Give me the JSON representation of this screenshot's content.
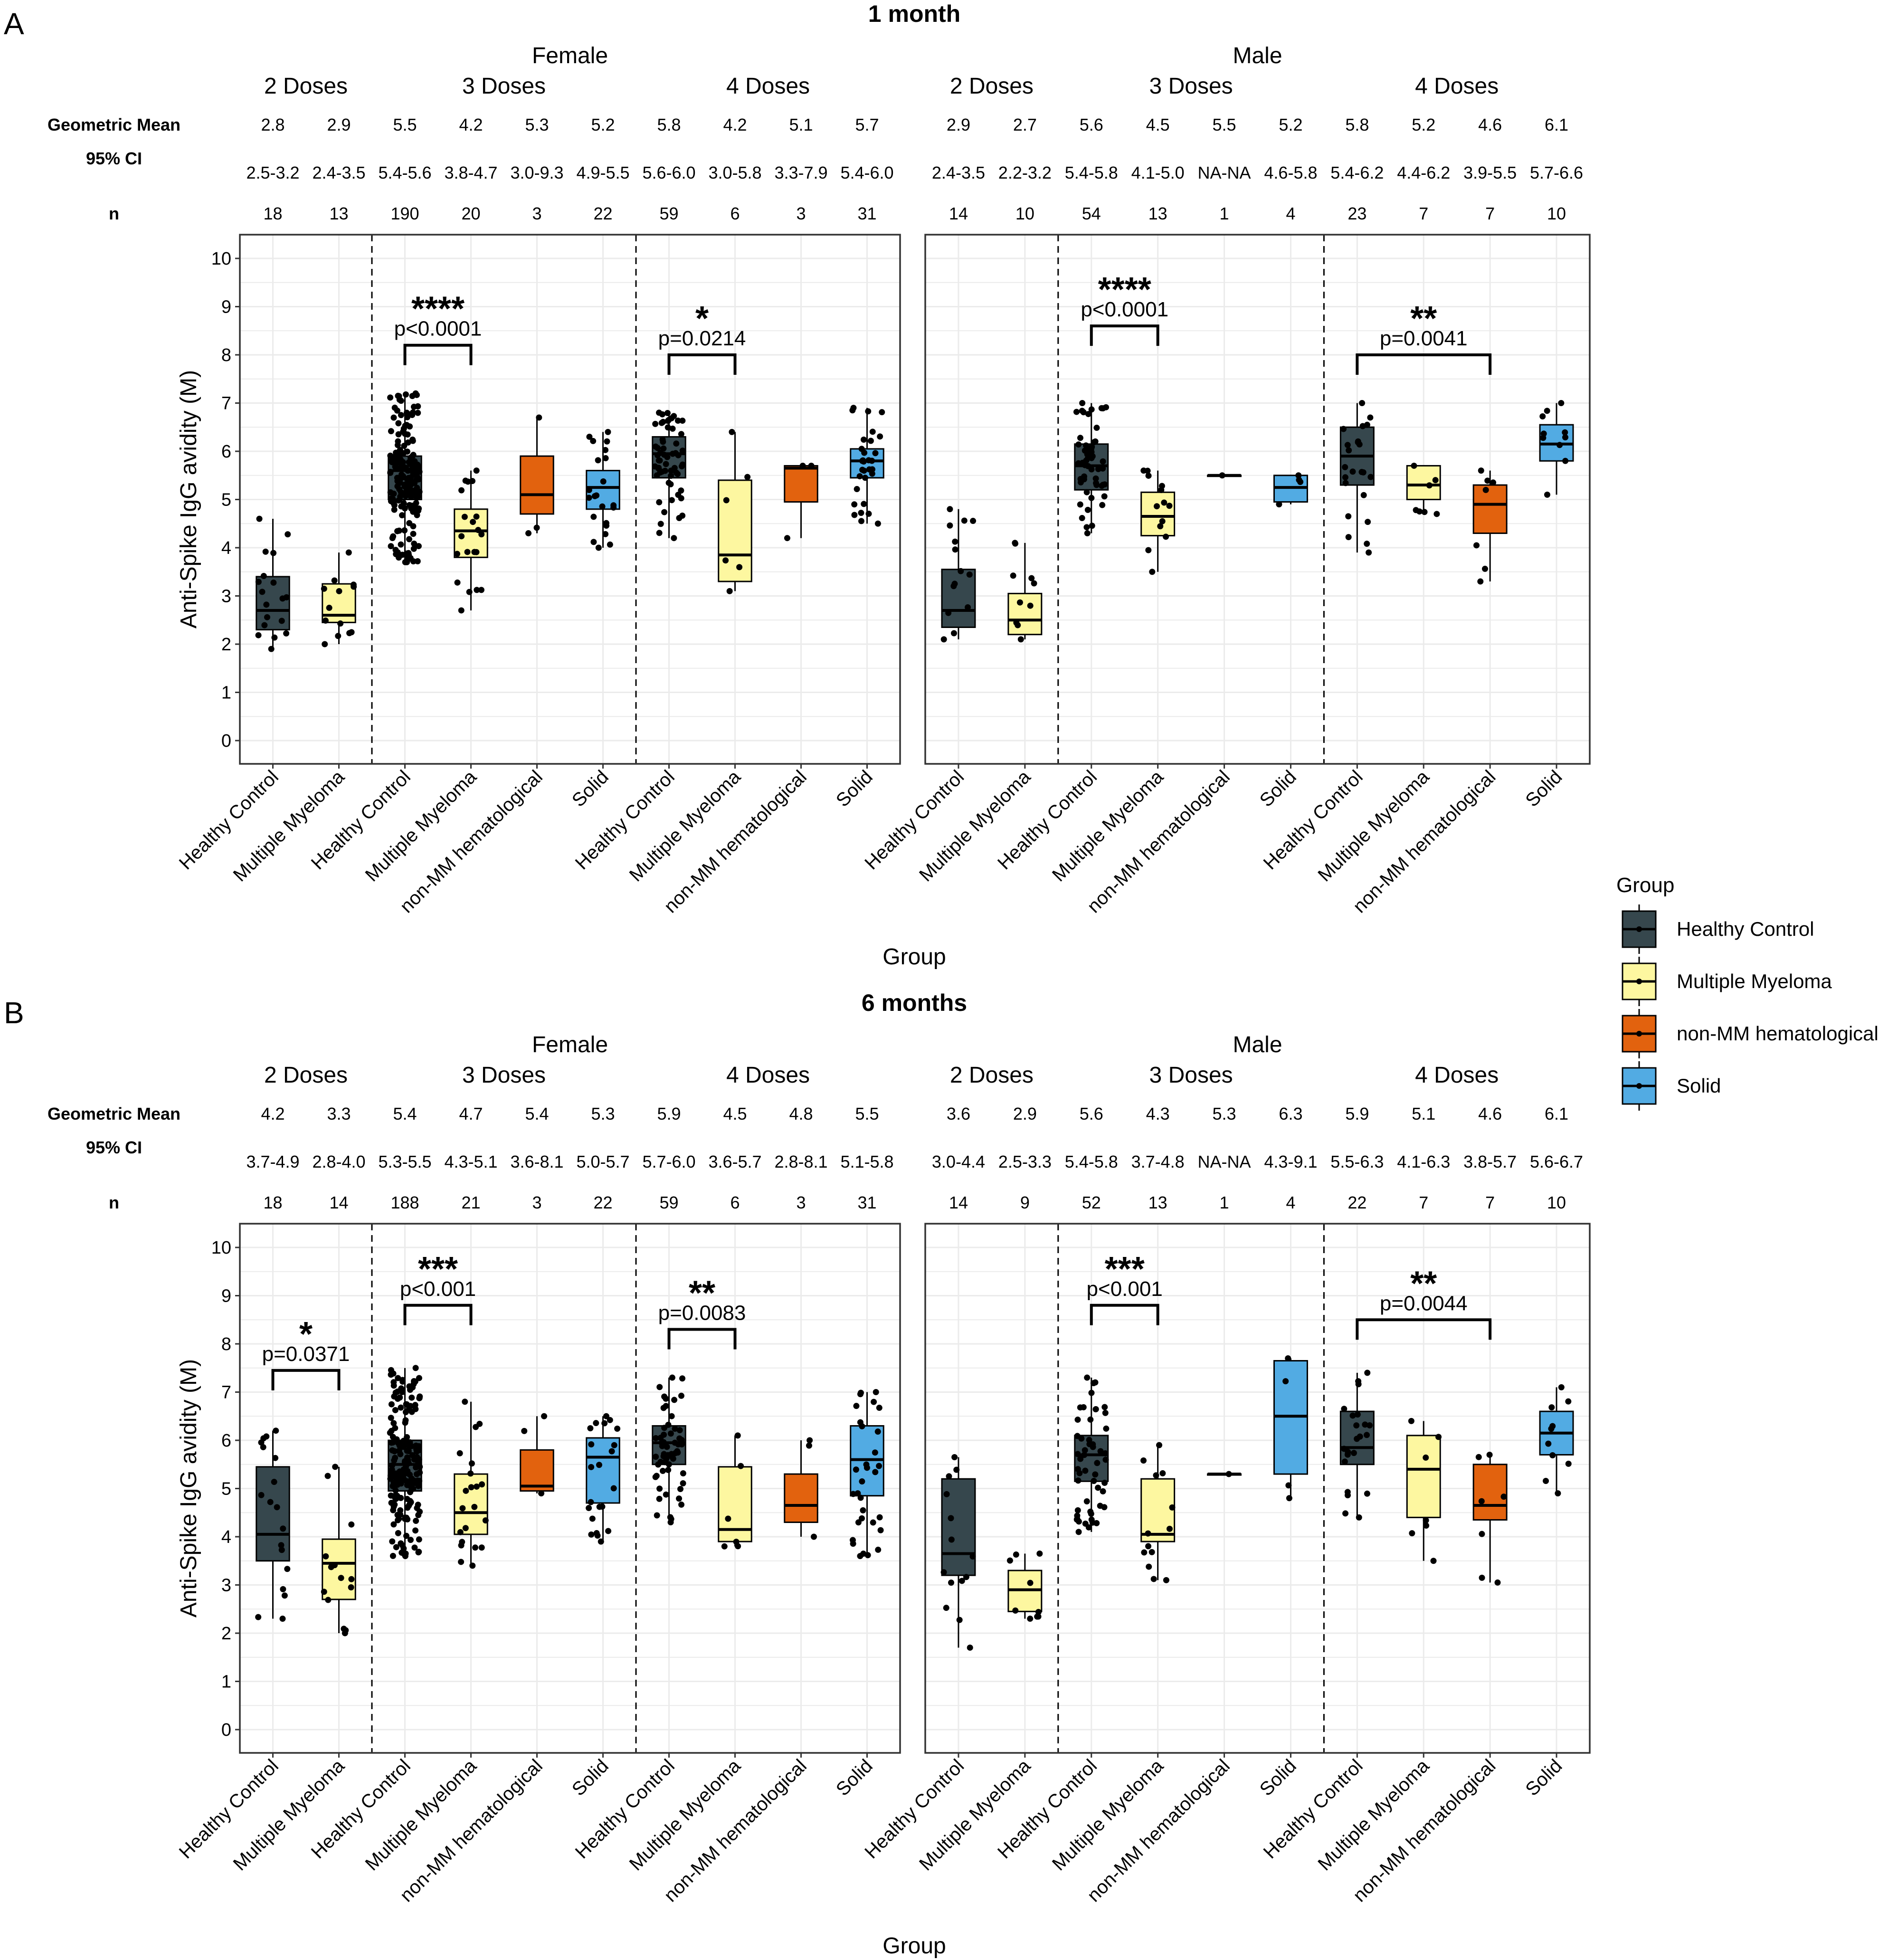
{
  "chart_data": {
    "type": "boxplot",
    "y_axis_label": "Anti-Spike IgG avidity (M)",
    "x_axis_label": "Group",
    "ylim": [
      0,
      10
    ],
    "y_ticks": [
      "0",
      "1",
      "2",
      "3",
      "4",
      "5",
      "6",
      "7",
      "8",
      "9",
      "10"
    ],
    "stat_labels": {
      "geometric_mean": "Geometric Mean",
      "ci": "95% CI",
      "n": "n"
    },
    "legend": {
      "title": "Group",
      "entries": [
        {
          "name": "Healthy Control",
          "color": "#36474d"
        },
        {
          "name": "Multiple Myeloma",
          "color": "#fdf7a0"
        },
        {
          "name": "non-MM hematological",
          "color": "#e2620e"
        },
        {
          "name": "Solid",
          "color": "#52abe3"
        }
      ]
    },
    "panels": [
      {
        "letter": "A",
        "title": "1 month",
        "facets": [
          {
            "sex": "Female",
            "dose_labels": [
              "2 Doses",
              "3 Doses",
              "4 Doses"
            ],
            "boxes": [
              {
                "group": "Healthy Control",
                "dose": 2,
                "gm": "2.8",
                "ci": "2.5-3.2",
                "n": "18",
                "wlo": 1.9,
                "q1": 2.3,
                "med": 2.7,
                "q3": 3.4,
                "whi": 4.6
              },
              {
                "group": "Multiple Myeloma",
                "dose": 2,
                "gm": "2.9",
                "ci": "2.4-3.5",
                "n": "13",
                "wlo": 2.0,
                "q1": 2.45,
                "med": 2.6,
                "q3": 3.25,
                "whi": 3.9
              },
              {
                "group": "Healthy Control",
                "dose": 3,
                "gm": "5.5",
                "ci": "5.4-5.6",
                "n": "190",
                "wlo": 3.7,
                "q1": 5.0,
                "med": 5.6,
                "q3": 5.9,
                "whi": 7.2
              },
              {
                "group": "Multiple Myeloma",
                "dose": 3,
                "gm": "4.2",
                "ci": "3.8-4.7",
                "n": "20",
                "wlo": 2.7,
                "q1": 3.8,
                "med": 4.35,
                "q3": 4.8,
                "whi": 5.6
              },
              {
                "group": "non-MM hematological",
                "dose": 3,
                "gm": "5.3",
                "ci": "3.0-9.3",
                "n": "3",
                "wlo": 4.3,
                "q1": 4.7,
                "med": 5.1,
                "q3": 5.9,
                "whi": 6.7
              },
              {
                "group": "Solid",
                "dose": 3,
                "gm": "5.2",
                "ci": "4.9-5.5",
                "n": "22",
                "wlo": 4.0,
                "q1": 4.8,
                "med": 5.25,
                "q3": 5.6,
                "whi": 6.4
              },
              {
                "group": "Healthy Control",
                "dose": 4,
                "gm": "5.8",
                "ci": "5.6-6.0",
                "n": "59",
                "wlo": 4.2,
                "q1": 5.45,
                "med": 5.95,
                "q3": 6.3,
                "whi": 6.8
              },
              {
                "group": "Multiple Myeloma",
                "dose": 4,
                "gm": "4.2",
                "ci": "3.0-5.8",
                "n": "6",
                "wlo": 3.1,
                "q1": 3.3,
                "med": 3.85,
                "q3": 5.4,
                "whi": 6.4
              },
              {
                "group": "non-MM hematological",
                "dose": 4,
                "gm": "5.1",
                "ci": "3.3-7.9",
                "n": "3",
                "wlo": 4.2,
                "q1": 4.95,
                "med": 5.65,
                "q3": 5.7,
                "whi": 5.7
              },
              {
                "group": "Solid",
                "dose": 4,
                "gm": "5.7",
                "ci": "5.4-6.0",
                "n": "31",
                "wlo": 4.5,
                "q1": 5.45,
                "med": 5.8,
                "q3": 6.05,
                "whi": 6.9
              }
            ],
            "brackets": [
              {
                "from": 2,
                "to": 3,
                "stars": "****",
                "p": "p<0.0001",
                "y": 8.2
              },
              {
                "from": 6,
                "to": 7,
                "stars": "*",
                "p": "p=0.0214",
                "y": 8.0
              }
            ]
          },
          {
            "sex": "Male",
            "dose_labels": [
              "2 Doses",
              "3 Doses",
              "4 Doses"
            ],
            "boxes": [
              {
                "group": "Healthy Control",
                "dose": 2,
                "gm": "2.9",
                "ci": "2.4-3.5",
                "n": "14",
                "wlo": 2.1,
                "q1": 2.35,
                "med": 2.7,
                "q3": 3.55,
                "whi": 4.8
              },
              {
                "group": "Multiple Myeloma",
                "dose": 2,
                "gm": "2.7",
                "ci": "2.2-3.2",
                "n": "10",
                "wlo": 2.1,
                "q1": 2.2,
                "med": 2.5,
                "q3": 3.05,
                "whi": 4.1
              },
              {
                "group": "Healthy Control",
                "dose": 3,
                "gm": "5.6",
                "ci": "5.4-5.8",
                "n": "54",
                "wlo": 4.3,
                "q1": 5.2,
                "med": 5.7,
                "q3": 6.15,
                "whi": 7.0
              },
              {
                "group": "Multiple Myeloma",
                "dose": 3,
                "gm": "4.5",
                "ci": "4.1-5.0",
                "n": "13",
                "wlo": 3.5,
                "q1": 4.25,
                "med": 4.65,
                "q3": 5.15,
                "whi": 5.6
              },
              {
                "group": "non-MM hematological",
                "dose": 3,
                "gm": "5.5",
                "ci": "NA-NA",
                "n": "1",
                "wlo": 5.5,
                "q1": 5.5,
                "med": 5.5,
                "q3": 5.5,
                "whi": 5.5
              },
              {
                "group": "Solid",
                "dose": 3,
                "gm": "5.2",
                "ci": "4.6-5.8",
                "n": "4",
                "wlo": 4.9,
                "q1": 4.95,
                "med": 5.25,
                "q3": 5.5,
                "whi": 5.5
              },
              {
                "group": "Healthy Control",
                "dose": 4,
                "gm": "5.8",
                "ci": "5.4-6.2",
                "n": "23",
                "wlo": 3.9,
                "q1": 5.3,
                "med": 5.9,
                "q3": 6.5,
                "whi": 7.0
              },
              {
                "group": "Multiple Myeloma",
                "dose": 4,
                "gm": "5.2",
                "ci": "4.4-6.2",
                "n": "7",
                "wlo": 4.7,
                "q1": 5.0,
                "med": 5.3,
                "q3": 5.7,
                "whi": 5.7
              },
              {
                "group": "non-MM hematological",
                "dose": 4,
                "gm": "4.6",
                "ci": "3.9-5.5",
                "n": "7",
                "wlo": 3.3,
                "q1": 4.3,
                "med": 4.9,
                "q3": 5.3,
                "whi": 5.6
              },
              {
                "group": "Solid",
                "dose": 4,
                "gm": "6.1",
                "ci": "5.7-6.6",
                "n": "10",
                "wlo": 5.1,
                "q1": 5.8,
                "med": 6.15,
                "q3": 6.55,
                "whi": 7.0
              }
            ],
            "brackets": [
              {
                "from": 2,
                "to": 3,
                "stars": "****",
                "p": "p<0.0001",
                "y": 8.6
              },
              {
                "from": 6,
                "to": 8,
                "stars": "**",
                "p": "p=0.0041",
                "y": 8.0
              }
            ]
          }
        ]
      },
      {
        "letter": "B",
        "title": "6 months",
        "facets": [
          {
            "sex": "Female",
            "dose_labels": [
              "2 Doses",
              "3 Doses",
              "4 Doses"
            ],
            "boxes": [
              {
                "group": "Healthy Control",
                "dose": 2,
                "gm": "4.2",
                "ci": "3.7-4.9",
                "n": "18",
                "wlo": 2.3,
                "q1": 3.5,
                "med": 4.05,
                "q3": 5.45,
                "whi": 6.2
              },
              {
                "group": "Multiple Myeloma",
                "dose": 2,
                "gm": "3.3",
                "ci": "2.8-4.0",
                "n": "14",
                "wlo": 2.0,
                "q1": 2.7,
                "med": 3.45,
                "q3": 3.95,
                "whi": 5.45
              },
              {
                "group": "Healthy Control",
                "dose": 3,
                "gm": "5.4",
                "ci": "5.3-5.5",
                "n": "188",
                "wlo": 3.6,
                "q1": 4.95,
                "med": 5.5,
                "q3": 6.0,
                "whi": 7.5
              },
              {
                "group": "Multiple Myeloma",
                "dose": 3,
                "gm": "4.7",
                "ci": "4.3-5.1",
                "n": "21",
                "wlo": 3.4,
                "q1": 4.05,
                "med": 4.5,
                "q3": 5.3,
                "whi": 6.8
              },
              {
                "group": "non-MM hematological",
                "dose": 3,
                "gm": "5.4",
                "ci": "3.6-8.1",
                "n": "3",
                "wlo": 4.9,
                "q1": 4.95,
                "med": 5.05,
                "q3": 5.8,
                "whi": 6.5
              },
              {
                "group": "Solid",
                "dose": 3,
                "gm": "5.3",
                "ci": "5.0-5.7",
                "n": "22",
                "wlo": 3.9,
                "q1": 4.7,
                "med": 5.65,
                "q3": 6.05,
                "whi": 6.5
              },
              {
                "group": "Healthy Control",
                "dose": 4,
                "gm": "5.9",
                "ci": "5.7-6.0",
                "n": "59",
                "wlo": 4.3,
                "q1": 5.5,
                "med": 5.95,
                "q3": 6.3,
                "whi": 7.3
              },
              {
                "group": "Multiple Myeloma",
                "dose": 4,
                "gm": "4.5",
                "ci": "3.6-5.7",
                "n": "6",
                "wlo": 3.8,
                "q1": 3.9,
                "med": 4.15,
                "q3": 5.45,
                "whi": 6.1
              },
              {
                "group": "non-MM hematological",
                "dose": 4,
                "gm": "4.8",
                "ci": "2.8-8.1",
                "n": "3",
                "wlo": 4.0,
                "q1": 4.3,
                "med": 4.65,
                "q3": 5.3,
                "whi": 6.0
              },
              {
                "group": "Solid",
                "dose": 4,
                "gm": "5.5",
                "ci": "5.1-5.8",
                "n": "31",
                "wlo": 3.6,
                "q1": 4.85,
                "med": 5.6,
                "q3": 6.3,
                "whi": 7.0
              }
            ],
            "brackets": [
              {
                "from": 0,
                "to": 1,
                "stars": "*",
                "p": "p=0.0371",
                "y": 7.45
              },
              {
                "from": 2,
                "to": 3,
                "stars": "***",
                "p": "p<0.001",
                "y": 8.8
              },
              {
                "from": 6,
                "to": 7,
                "stars": "**",
                "p": "p=0.0083",
                "y": 8.3
              }
            ]
          },
          {
            "sex": "Male",
            "dose_labels": [
              "2 Doses",
              "3 Doses",
              "4 Doses"
            ],
            "boxes": [
              {
                "group": "Healthy Control",
                "dose": 2,
                "gm": "3.6",
                "ci": "3.0-4.4",
                "n": "14",
                "wlo": 1.7,
                "q1": 3.2,
                "med": 3.65,
                "q3": 5.2,
                "whi": 5.65
              },
              {
                "group": "Multiple Myeloma",
                "dose": 2,
                "gm": "2.9",
                "ci": "2.5-3.3",
                "n": "9",
                "wlo": 2.3,
                "q1": 2.45,
                "med": 2.9,
                "q3": 3.3,
                "whi": 3.65
              },
              {
                "group": "Healthy Control",
                "dose": 3,
                "gm": "5.6",
                "ci": "5.4-5.8",
                "n": "52",
                "wlo": 4.1,
                "q1": 5.15,
                "med": 5.7,
                "q3": 6.1,
                "whi": 7.3
              },
              {
                "group": "Multiple Myeloma",
                "dose": 3,
                "gm": "4.3",
                "ci": "3.7-4.8",
                "n": "13",
                "wlo": 3.1,
                "q1": 3.9,
                "med": 4.05,
                "q3": 5.2,
                "whi": 5.9
              },
              {
                "group": "non-MM hematological",
                "dose": 3,
                "gm": "5.3",
                "ci": "NA-NA",
                "n": "1",
                "wlo": 5.3,
                "q1": 5.3,
                "med": 5.3,
                "q3": 5.3,
                "whi": 5.3
              },
              {
                "group": "Solid",
                "dose": 3,
                "gm": "6.3",
                "ci": "4.3-9.1",
                "n": "4",
                "wlo": 4.8,
                "q1": 5.3,
                "med": 6.5,
                "q3": 7.65,
                "whi": 7.7
              },
              {
                "group": "Healthy Control",
                "dose": 4,
                "gm": "5.9",
                "ci": "5.5-6.3",
                "n": "22",
                "wlo": 4.4,
                "q1": 5.5,
                "med": 5.85,
                "q3": 6.6,
                "whi": 7.4
              },
              {
                "group": "Multiple Myeloma",
                "dose": 4,
                "gm": "5.1",
                "ci": "4.1-6.3",
                "n": "7",
                "wlo": 3.5,
                "q1": 4.4,
                "med": 5.4,
                "q3": 6.1,
                "whi": 6.4
              },
              {
                "group": "non-MM hematological",
                "dose": 4,
                "gm": "4.6",
                "ci": "3.8-5.7",
                "n": "7",
                "wlo": 3.05,
                "q1": 4.35,
                "med": 4.65,
                "q3": 5.5,
                "whi": 5.7
              },
              {
                "group": "Solid",
                "dose": 4,
                "gm": "6.1",
                "ci": "5.6-6.7",
                "n": "10",
                "wlo": 4.9,
                "q1": 5.7,
                "med": 6.15,
                "q3": 6.6,
                "whi": 7.1
              }
            ],
            "brackets": [
              {
                "from": 2,
                "to": 3,
                "stars": "***",
                "p": "p<0.001",
                "y": 8.8
              },
              {
                "from": 6,
                "to": 8,
                "stars": "**",
                "p": "p=0.0044",
                "y": 8.5
              }
            ]
          }
        ]
      }
    ]
  }
}
